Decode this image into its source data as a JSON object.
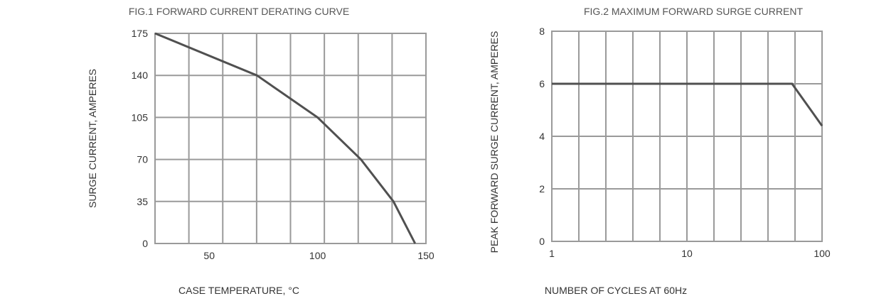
{
  "charts": [
    {
      "type": "line",
      "title": "FIG.1 FORWARD CURRENT DERATING CURVE",
      "xlabel": "CASE TEMPERATURE, °C",
      "ylabel": "SURGE CURRENT, AMPERES",
      "xlim": [
        25,
        150
      ],
      "ylim": [
        0,
        175
      ],
      "x_scale": "linear",
      "x_ticks": [
        "50",
        "100",
        "150"
      ],
      "y_ticks": [
        "175",
        "140",
        "105",
        "70",
        "35",
        "0"
      ],
      "grid": true,
      "series": [
        {
          "values": [
            [
              25,
              175
            ],
            [
              72,
              140
            ],
            [
              100,
              105
            ],
            [
              120,
              70
            ],
            [
              135,
              35
            ],
            [
              145,
              0
            ]
          ]
        }
      ]
    },
    {
      "type": "line",
      "title": "FIG.2 MAXIMUM FORWARD SURGE CURRENT",
      "xlabel": "NUMBER OF CYCLES AT 60Hz",
      "ylabel": "PEAK FORWARD SURGE CURRENT, AMPERES",
      "xlim": [
        1,
        100
      ],
      "ylim": [
        0,
        8
      ],
      "x_scale": "log",
      "x_ticks": [
        "1",
        "10",
        "100"
      ],
      "y_ticks": [
        "8",
        "6",
        "4",
        "2",
        "0"
      ],
      "grid": true,
      "series": [
        {
          "values": [
            [
              1,
              6
            ],
            [
              3,
              6
            ],
            [
              8,
              6
            ],
            [
              15,
              6
            ],
            [
              30,
              6
            ],
            [
              60,
              6
            ],
            [
              100,
              4.4
            ]
          ]
        }
      ]
    }
  ],
  "chart_data": [
    {
      "type": "line",
      "title": "FIG.1 FORWARD CURRENT DERATING CURVE",
      "xlabel": "CASE TEMPERATURE, °C",
      "ylabel": "SURGE CURRENT, AMPERES",
      "xlim": [
        25,
        150
      ],
      "ylim": [
        0,
        175
      ],
      "grid": true,
      "series": [
        {
          "x": [
            25,
            72,
            100,
            120,
            135,
            145
          ],
          "y": [
            175,
            140,
            105,
            70,
            35,
            0
          ]
        }
      ]
    },
    {
      "type": "line",
      "title": "FIG.2 MAXIMUM FORWARD SURGE CURRENT",
      "xlabel": "NUMBER OF CYCLES AT 60Hz",
      "ylabel": "PEAK FORWARD SURGE CURRENT, AMPERES",
      "xlim": [
        1,
        100
      ],
      "ylim": [
        0,
        8
      ],
      "x_scale": "log",
      "grid": true,
      "series": [
        {
          "x": [
            1,
            3,
            8,
            15,
            30,
            60,
            100
          ],
          "y": [
            6,
            6,
            6,
            6,
            6,
            6,
            4.4
          ]
        }
      ]
    }
  ]
}
